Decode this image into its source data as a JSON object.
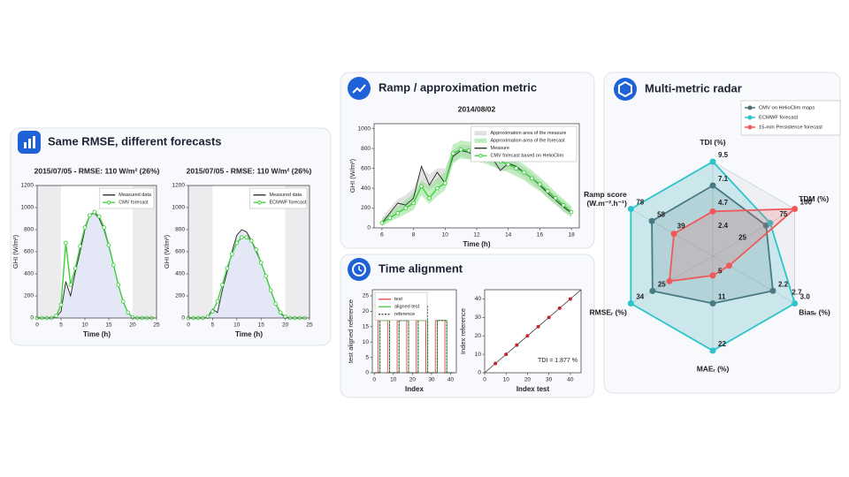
{
  "panels": [
    {
      "title": "Same RMSE, different forecasts"
    },
    {
      "title": "Ramp / approximation metric"
    },
    {
      "title": "Time alignment"
    },
    {
      "title": "Multi-metric radar"
    }
  ],
  "chart_data": [
    {
      "type": "line",
      "title": "2015/07/05 - RMSE: 110 W/m² (26%)",
      "x": [
        0,
        1,
        2,
        3,
        4,
        5,
        6,
        7,
        8,
        9,
        10,
        11,
        12,
        13,
        14,
        15,
        16,
        17,
        18,
        19,
        20,
        21,
        22,
        23,
        24
      ],
      "xlim": [
        0,
        25
      ],
      "xticks": [
        0,
        5,
        10,
        15,
        20,
        25
      ],
      "ylim": [
        0,
        1200
      ],
      "yticks": [
        0,
        200,
        400,
        600,
        800,
        1000,
        1200
      ],
      "xlabel": "Time (h)",
      "ylabel": "GHI (W/m²)",
      "legend": "upper right",
      "series": [
        {
          "name": "Measured data",
          "color": "#222222",
          "fill": "#e4e7f6",
          "values": [
            0,
            0,
            0,
            0,
            10,
            60,
            330,
            200,
            420,
            600,
            800,
            930,
            950,
            900,
            800,
            650,
            480,
            300,
            150,
            50,
            5,
            0,
            0,
            0,
            0
          ]
        },
        {
          "name": "CMV forecast",
          "color": "#3dd13d",
          "marker": true,
          "values": [
            0,
            0,
            0,
            0,
            20,
            120,
            680,
            300,
            450,
            650,
            820,
            930,
            960,
            920,
            820,
            660,
            480,
            300,
            150,
            50,
            5,
            0,
            0,
            0,
            0
          ]
        }
      ]
    },
    {
      "type": "line",
      "title": "2015/07/05 - RMSE: 110 W/m² (26%)",
      "x": [
        0,
        1,
        2,
        3,
        4,
        5,
        6,
        7,
        8,
        9,
        10,
        11,
        12,
        13,
        14,
        15,
        16,
        17,
        18,
        19,
        20,
        21,
        22,
        23,
        24
      ],
      "xlim": [
        0,
        25
      ],
      "xticks": [
        0,
        5,
        10,
        15,
        20,
        25
      ],
      "ylim": [
        0,
        1200
      ],
      "yticks": [
        0,
        200,
        400,
        600,
        800,
        1000,
        1200
      ],
      "xlabel": "Time (h)",
      "ylabel": "GHI (W/m²)",
      "legend": "upper right",
      "series": [
        {
          "name": "Measured data",
          "color": "#222222",
          "fill": "#e4e7f6",
          "values": [
            0,
            0,
            0,
            0,
            10,
            80,
            50,
            250,
            420,
            600,
            750,
            800,
            780,
            700,
            600,
            500,
            380,
            250,
            130,
            40,
            5,
            0,
            0,
            0,
            0
          ]
        },
        {
          "name": "ECMWF forecast",
          "color": "#3dd13d",
          "marker": true,
          "values": [
            0,
            0,
            0,
            0,
            10,
            60,
            150,
            300,
            450,
            580,
            680,
            730,
            730,
            700,
            620,
            500,
            380,
            250,
            130,
            50,
            10,
            0,
            0,
            0,
            0
          ]
        }
      ]
    },
    {
      "type": "line",
      "title": "2014/08/02",
      "x": [
        6,
        6.5,
        7,
        7.5,
        8,
        8.5,
        9,
        9.5,
        10,
        10.5,
        11,
        11.5,
        12,
        12.5,
        13,
        13.5,
        14,
        14.5,
        15,
        15.5,
        16,
        16.5,
        17,
        17.5,
        18
      ],
      "xlim": [
        5.5,
        18.5
      ],
      "xticks": [
        6,
        8,
        10,
        12,
        14,
        16,
        18
      ],
      "ylim": [
        0,
        1050
      ],
      "yticks": [
        0,
        200,
        400,
        600,
        800,
        1000
      ],
      "xlabel": "Time (h)",
      "ylabel": "GHI (W/m²)",
      "legend": "upper right",
      "series": [
        {
          "name": "Approximation area of the measure",
          "color": "#c9ccc9",
          "band": true,
          "values": [
            100,
            200,
            290,
            330,
            400,
            600,
            540,
            600,
            600,
            780,
            840,
            830,
            800,
            790,
            760,
            700,
            700,
            660,
            610,
            550,
            480,
            400,
            330,
            260,
            200
          ],
          "low": [
            20,
            90,
            170,
            180,
            240,
            420,
            380,
            440,
            420,
            660,
            720,
            700,
            670,
            680,
            640,
            560,
            590,
            570,
            510,
            450,
            380,
            300,
            230,
            160,
            110
          ]
        },
        {
          "name": "Approximation area of the forecast",
          "color": "#8fe08f",
          "band": true,
          "values": [
            90,
            150,
            220,
            280,
            350,
            480,
            420,
            500,
            560,
            840,
            880,
            870,
            850,
            820,
            790,
            760,
            720,
            680,
            640,
            580,
            510,
            440,
            360,
            290,
            220
          ],
          "low": [
            20,
            60,
            100,
            140,
            180,
            330,
            240,
            320,
            380,
            650,
            700,
            690,
            670,
            650,
            620,
            590,
            560,
            520,
            480,
            420,
            370,
            300,
            240,
            170,
            110
          ]
        },
        {
          "name": "Measure",
          "color": "#222222",
          "values": [
            50,
            150,
            250,
            230,
            300,
            620,
            430,
            560,
            450,
            720,
            780,
            760,
            720,
            740,
            700,
            580,
            650,
            620,
            560,
            500,
            430,
            350,
            280,
            210,
            150
          ]
        },
        {
          "name": "CMV forecast based on HelioClim",
          "color": "#3dd13d",
          "marker": true,
          "values": [
            50,
            100,
            150,
            200,
            250,
            420,
            300,
            400,
            450,
            750,
            790,
            780,
            760,
            730,
            700,
            670,
            640,
            600,
            560,
            500,
            440,
            370,
            300,
            230,
            160
          ]
        }
      ]
    },
    {
      "type": "line",
      "xlim": [
        -1,
        43
      ],
      "xticks": [
        0,
        10,
        20,
        30,
        40
      ],
      "ylim": [
        0,
        27
      ],
      "yticks": [
        0,
        5,
        10,
        15,
        20,
        25
      ],
      "xlabel": "Index",
      "ylabel": "test aligned reference",
      "legend": "upper left",
      "series": [
        {
          "name": "test",
          "color": "#e8434a",
          "x": [
            0,
            2,
            2,
            7,
            7,
            12,
            12,
            17,
            17,
            22,
            22,
            27,
            27,
            32,
            32,
            37,
            37,
            42
          ],
          "values": [
            0,
            0,
            17,
            17,
            0,
            0,
            17,
            17,
            0,
            0,
            17,
            17,
            0,
            0,
            17,
            17,
            0,
            0
          ]
        },
        {
          "name": "aligned test",
          "color": "#3dd13d",
          "x": [
            0,
            3,
            3,
            8,
            8,
            13,
            13,
            18,
            18,
            23,
            23,
            28,
            28,
            33,
            33,
            38,
            38,
            42
          ],
          "values": [
            0,
            0,
            17,
            17,
            0,
            0,
            17,
            17,
            0,
            0,
            17,
            17,
            0,
            0,
            17,
            17,
            0,
            0
          ]
        },
        {
          "name": "reference",
          "color": "#333333",
          "dash": true,
          "x": [
            0,
            3,
            3,
            8,
            8,
            13,
            13,
            18,
            18,
            23,
            23,
            28,
            28,
            33,
            33,
            38,
            38,
            42
          ],
          "values": [
            0,
            0,
            20,
            20,
            0,
            0,
            17,
            17,
            0,
            0,
            22,
            22,
            0,
            0,
            17,
            17,
            0,
            0
          ]
        }
      ]
    },
    {
      "type": "scatter",
      "xlim": [
        0,
        45
      ],
      "xticks": [
        0,
        10,
        20,
        30,
        40
      ],
      "ylim": [
        0,
        45
      ],
      "yticks": [
        0,
        10,
        20,
        30,
        40
      ],
      "xlabel": "Index test",
      "ylabel": "Index reference",
      "color": "#c0282d",
      "diagonal": true,
      "annotation": "TDI = 1.877 %",
      "x": [
        5,
        10,
        15,
        20,
        25,
        30,
        35,
        40
      ],
      "values": [
        5,
        10,
        15,
        20,
        25,
        30,
        35,
        40
      ]
    },
    {
      "type": "radar",
      "legend": "upper right",
      "axes": [
        {
          "label": [
            "TDI (%)"
          ],
          "max": 9.5,
          "ticks": [
            2.4,
            4.7,
            7.1,
            9.5
          ]
        },
        {
          "label": [
            "TDM (%)"
          ],
          "max": 100,
          "ticks": [
            25,
            75,
            100
          ]
        },
        {
          "label": [
            "Biasᵣ (%)"
          ],
          "max": 3.0,
          "ticks": [
            2.2,
            2.7,
            {
              "value": 3.0,
              "label": "3.0"
            }
          ]
        },
        {
          "label": [
            "MAEᵣ (%)"
          ],
          "max": 22,
          "ticks": [
            5,
            11,
            22
          ]
        },
        {
          "label": [
            "RMSEᵣ (%)"
          ],
          "max": 34,
          "ticks": [
            25,
            34
          ]
        },
        {
          "label": [
            "Ramp score",
            "(W.m⁻².h⁻¹)"
          ],
          "max": 78,
          "ticks": [
            39,
            58,
            78
          ]
        }
      ],
      "series": [
        {
          "name": "CMV on HelioClim maps",
          "color": "#4f6b75",
          "values": [
            7.1,
            65,
            2.2,
            11,
            25,
            58
          ]
        },
        {
          "name": "ECMWF forecast",
          "color": "#2cc4c9",
          "values": [
            9.5,
            70,
            3.0,
            22,
            34,
            78
          ]
        },
        {
          "name": "15-min Persistence forecast",
          "color": "#f0595b",
          "values": [
            4.5,
            100,
            0.6,
            4.5,
            18,
            37
          ]
        }
      ]
    }
  ]
}
